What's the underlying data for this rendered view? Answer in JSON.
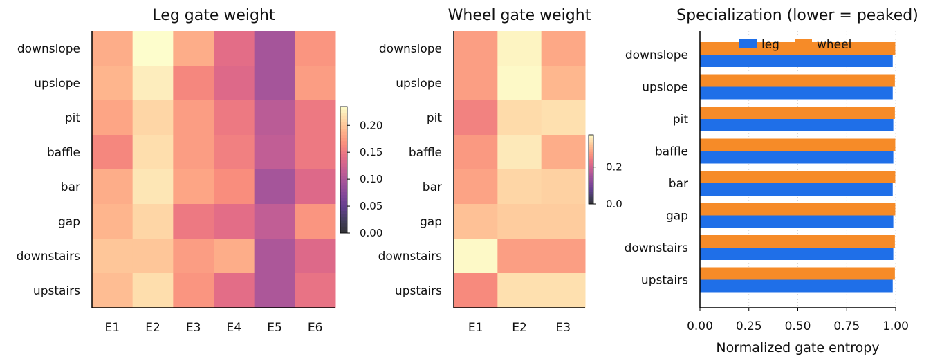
{
  "chart_data": [
    {
      "type": "heatmap",
      "title": "Leg gate weight",
      "rows": [
        "downslope",
        "upslope",
        "pit",
        "baffle",
        "bar",
        "gap",
        "downstairs",
        "upstairs"
      ],
      "cols": [
        "E1",
        "E2",
        "E3",
        "E4",
        "E5",
        "E6"
      ],
      "values": [
        [
          0.185,
          0.235,
          0.185,
          0.14,
          0.095,
          0.17
        ],
        [
          0.19,
          0.225,
          0.16,
          0.135,
          0.095,
          0.175
        ],
        [
          0.18,
          0.21,
          0.175,
          0.15,
          0.11,
          0.15
        ],
        [
          0.16,
          0.215,
          0.175,
          0.155,
          0.115,
          0.15
        ],
        [
          0.185,
          0.22,
          0.18,
          0.165,
          0.095,
          0.135
        ],
        [
          0.19,
          0.21,
          0.15,
          0.14,
          0.115,
          0.17
        ],
        [
          0.2,
          0.2,
          0.175,
          0.185,
          0.1,
          0.135
        ],
        [
          0.195,
          0.215,
          0.17,
          0.14,
          0.1,
          0.145
        ]
      ],
      "colorbar": {
        "min": 0.0,
        "max": 0.235,
        "ticks": [
          "0.00",
          "0.05",
          "0.10",
          "0.15",
          "0.20"
        ],
        "tick_values": [
          0.0,
          0.05,
          0.1,
          0.15,
          0.2
        ],
        "colormap": "magma"
      }
    },
    {
      "type": "heatmap",
      "title": "Wheel gate weight",
      "rows": [
        "downslope",
        "upslope",
        "pit",
        "baffle",
        "bar",
        "gap",
        "downstairs",
        "upstairs"
      ],
      "cols": [
        "E1",
        "E2",
        "E3"
      ],
      "values": [
        [
          0.28,
          0.365,
          0.29
        ],
        [
          0.28,
          0.37,
          0.305
        ],
        [
          0.25,
          0.34,
          0.345
        ],
        [
          0.275,
          0.355,
          0.295
        ],
        [
          0.285,
          0.335,
          0.33
        ],
        [
          0.315,
          0.325,
          0.325
        ],
        [
          0.37,
          0.28,
          0.28
        ],
        [
          0.26,
          0.345,
          0.345
        ]
      ],
      "colorbar": {
        "min": 0.0,
        "max": 0.375,
        "ticks": [
          "0.0",
          "0.2"
        ],
        "tick_values": [
          0.0,
          0.2
        ],
        "colormap": "magma"
      }
    },
    {
      "type": "bar",
      "orientation": "horizontal",
      "title": "Specialization (lower = peaked)",
      "categories": [
        "downslope",
        "upslope",
        "pit",
        "baffle",
        "bar",
        "gap",
        "downstairs",
        "upstairs"
      ],
      "series": [
        {
          "name": "leg",
          "color": "#1f6fe8",
          "values": [
            0.985,
            0.985,
            0.988,
            0.988,
            0.985,
            0.988,
            0.988,
            0.985
          ]
        },
        {
          "name": "wheel",
          "color": "#f68b28",
          "values": [
            0.998,
            0.996,
            0.996,
            0.998,
            0.998,
            0.998,
            0.996,
            0.996
          ]
        }
      ],
      "xlabel": "Normalized gate entropy",
      "xlim": [
        0.0,
        1.0
      ],
      "xticks": [
        "0.00",
        "0.25",
        "0.50",
        "0.75",
        "1.00"
      ],
      "xtick_values": [
        0.0,
        0.25,
        0.5,
        0.75,
        1.0
      ],
      "legend_position": "top"
    }
  ]
}
